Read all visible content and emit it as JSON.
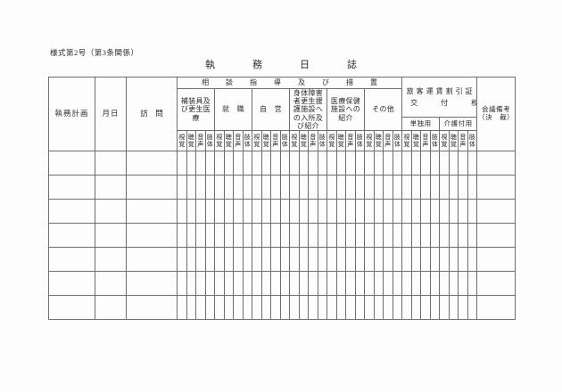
{
  "page": {
    "form_note": "様式第2号（第3条関係）",
    "title": "執務日誌"
  },
  "table": {
    "columns": {
      "workplan": "執務計画",
      "date": "月日",
      "visit": "訪　問"
    },
    "consultation_band": "相談指導及び措置",
    "groups": [
      "補装具及び更生医療",
      "就　職",
      "自　営",
      "身体障害者更生援護施設への入所及び紹介",
      "医療保健施設への紹介",
      "その他"
    ],
    "fare_certificate": {
      "line1": "旅客運賃割引証",
      "line2": "交　付　枚",
      "sub_headers": [
        "単独用",
        "介護付用"
      ]
    },
    "disability_subcols": [
      "視覚",
      "聴覚",
      "音声",
      "肢体"
    ],
    "subcol_group_count": 8,
    "remarks": {
      "line1": "会議備考",
      "line2": "（決　裁）"
    },
    "body_row_count": 7
  },
  "colors": {
    "grid_line": "#6e6e6e",
    "outer_frame": "#4e4e4e",
    "ink": "#2a2a2a",
    "paper": "#fdfdfd"
  }
}
